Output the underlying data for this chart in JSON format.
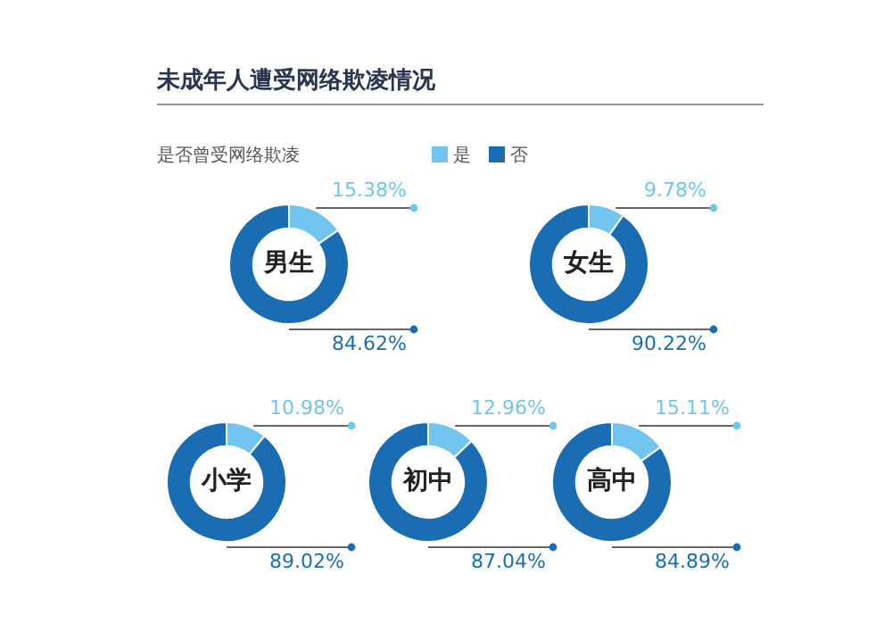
{
  "chart_data": [
    {
      "type": "donut",
      "title": "未成年人遭受网络欺凌情况",
      "subtitle": "是否曾受网络欺凌",
      "legend": "top",
      "categories": [
        "是",
        "否"
      ],
      "values": [
        15.38,
        84.62
      ],
      "colors": [
        "#72c5ee",
        "#1b6db3"
      ],
      "value_labels": [
        "15.38%",
        "84.62%"
      ],
      "annotations": [
        "男生"
      ]
    },
    {
      "type": "donut",
      "categories": [
        null,
        null
      ],
      "values": [
        9.78,
        90.22
      ],
      "colors": [
        "#72c5ee",
        "#1b6db3"
      ],
      "value_labels": [
        "9.78%",
        "90.22%"
      ],
      "annotations": [
        "女生"
      ]
    },
    {
      "type": "donut",
      "categories": [
        null,
        null
      ],
      "values": [
        10.98,
        89.02
      ],
      "colors": [
        "#72c5ee",
        "#1b6db3"
      ],
      "value_labels": [
        "10.98%",
        "89.02%"
      ],
      "annotations": [
        "小学"
      ]
    },
    {
      "type": "donut",
      "categories": [
        null,
        null
      ],
      "values": [
        12.96,
        87.04
      ],
      "colors": [
        "#72c5ee",
        "#1b6db3"
      ],
      "value_labels": [
        "12.96%",
        "87.04%"
      ],
      "annotations": [
        "初中"
      ]
    },
    {
      "type": "donut",
      "categories": [
        null,
        null
      ],
      "values": [
        15.11,
        84.89
      ],
      "colors": [
        "#72c5ee",
        "#1b6db3"
      ],
      "value_labels": [
        "15.11%",
        "84.89%"
      ],
      "annotations": [
        "高中"
      ]
    }
  ]
}
